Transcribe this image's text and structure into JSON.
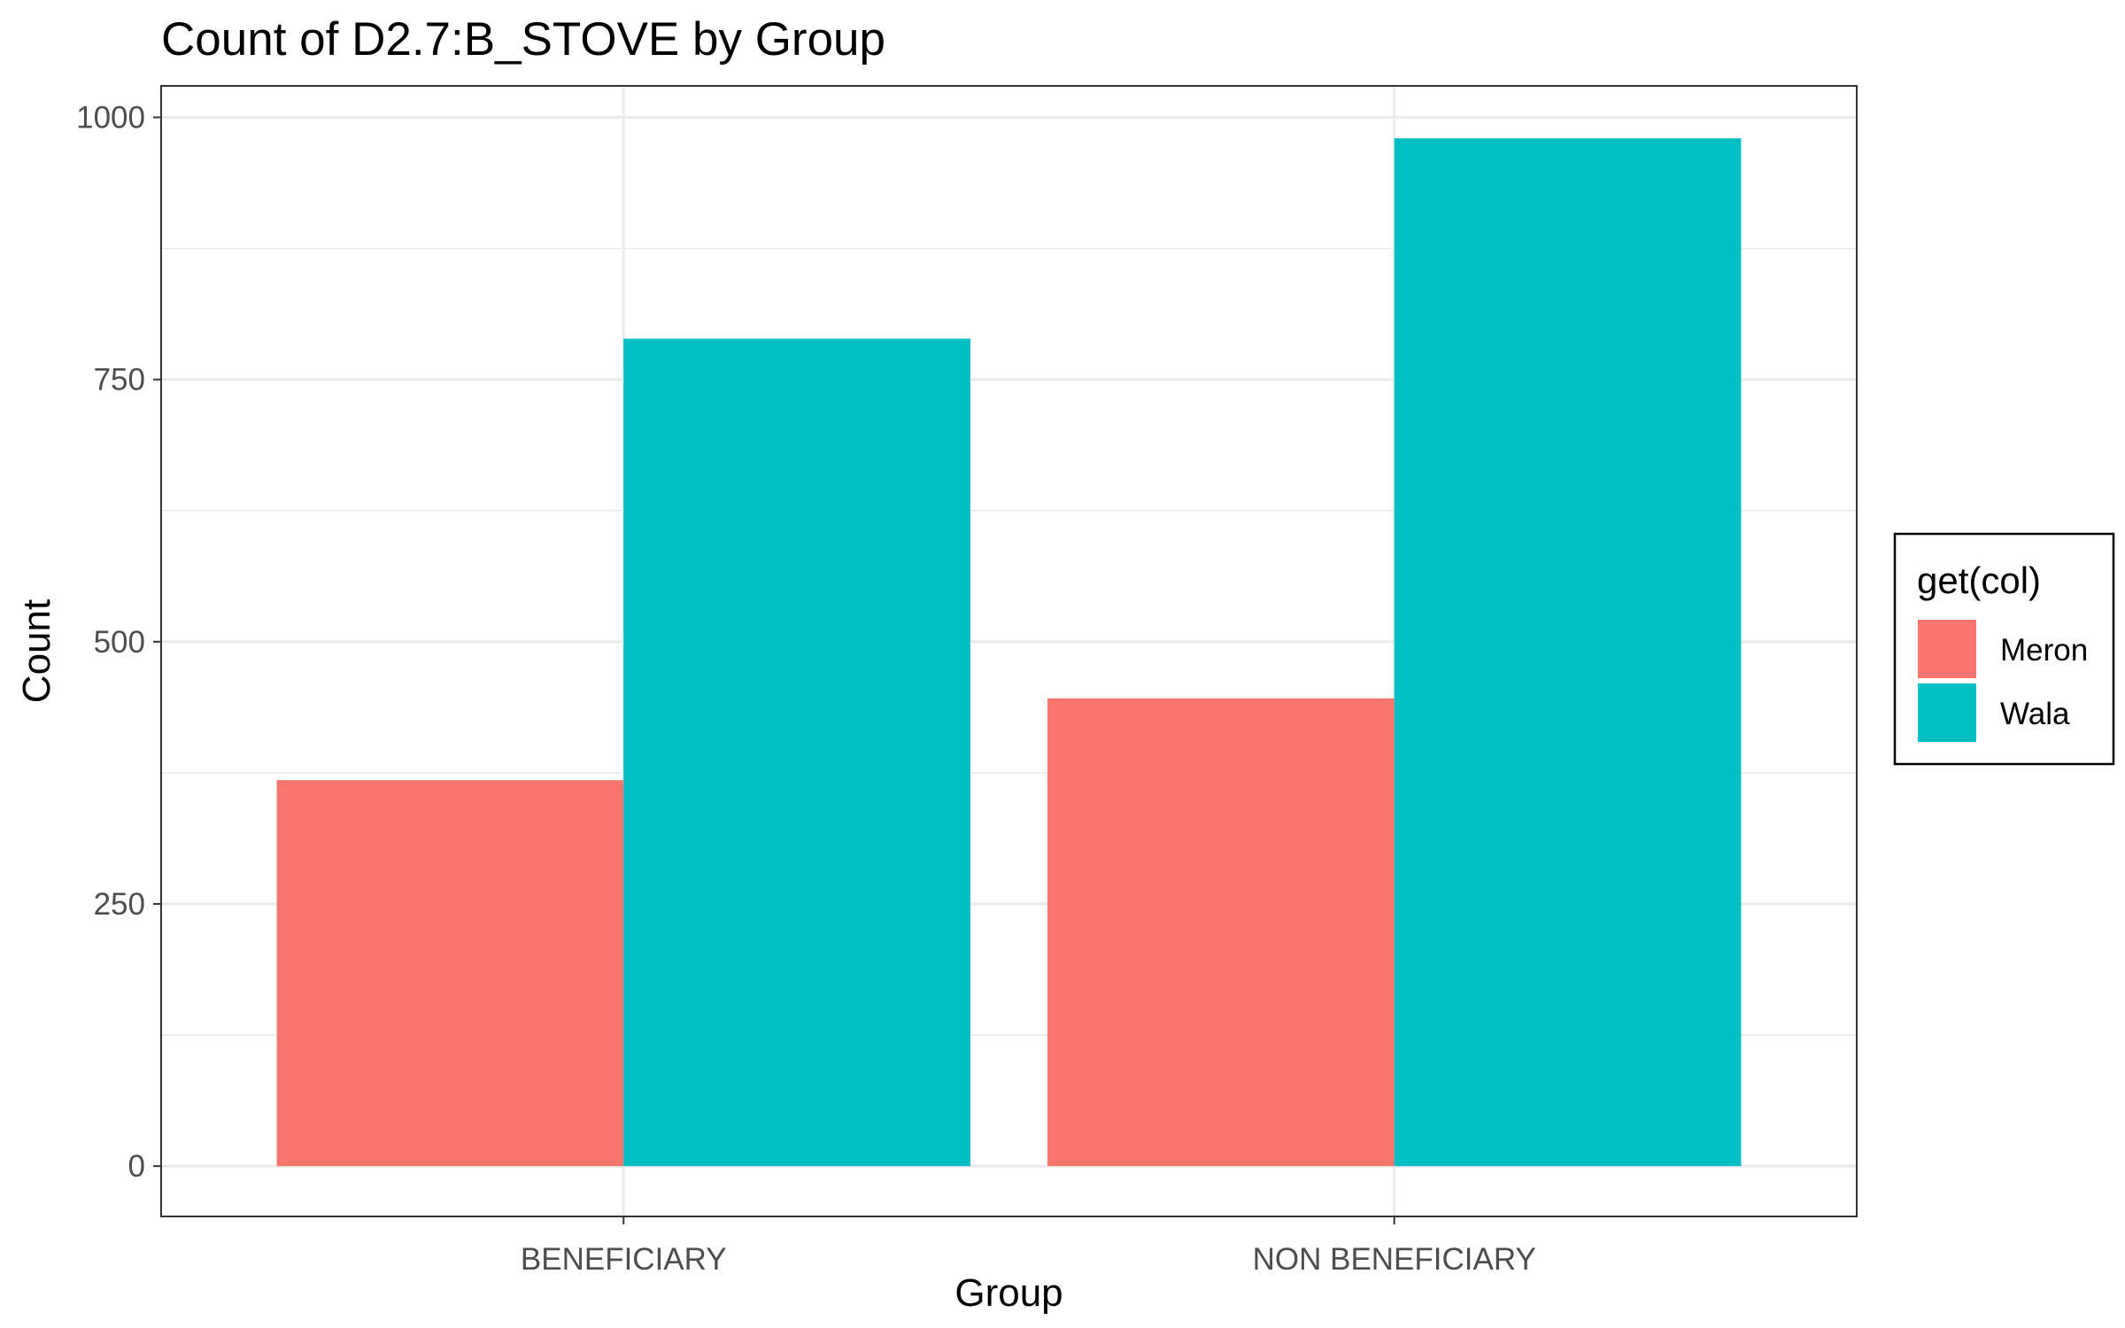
{
  "chart_data": {
    "type": "bar",
    "title": "Count of D2.7:B_STOVE by Group",
    "xlabel": "Group",
    "ylabel": "Count",
    "categories": [
      "BENEFICIARY",
      "NON BENEFICIARY"
    ],
    "series": [
      {
        "name": "Meron",
        "color": "#F8766D",
        "values": [
          368,
          446
        ]
      },
      {
        "name": "Wala",
        "color": "#00BFC4",
        "values": [
          789,
          980
        ]
      }
    ],
    "ylim": [
      -48,
      1030
    ],
    "yticks": [
      0,
      250,
      500,
      750,
      1000
    ],
    "ytick_labels": [
      "0",
      "250",
      "500",
      "750",
      "1000"
    ],
    "grid": true,
    "legend": {
      "title": "get(col)",
      "position": "right"
    }
  }
}
